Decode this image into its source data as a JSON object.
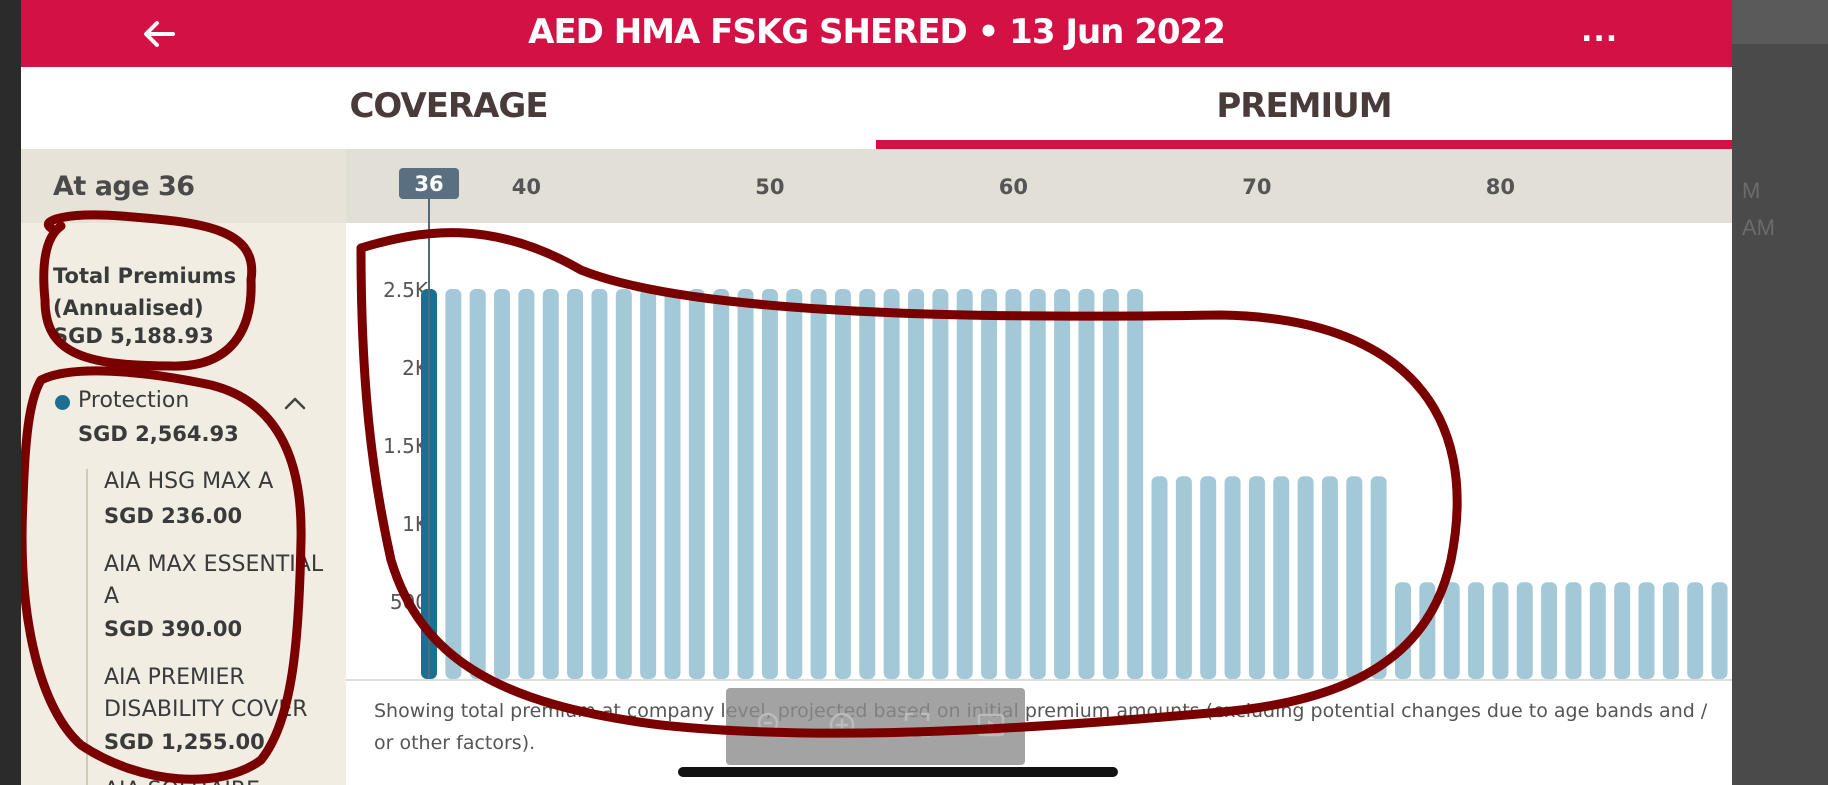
{
  "header": {
    "title": "AED HMA FSKG SHERED • 13 Jun 2022",
    "back_icon": "arrow-left-icon",
    "more_label": "..."
  },
  "tabs": [
    {
      "label": "COVERAGE",
      "selected": false
    },
    {
      "label": "PREMIUM",
      "selected": true
    }
  ],
  "colors": {
    "brand": "#d31145",
    "bar_selected": "#1c6f91",
    "bar": "#a3c9d8",
    "sidebar_bg": "#f1ede2"
  },
  "sidebar": {
    "age_header": "At age 36",
    "total_label": "Total Premiums (Annualised)",
    "total_value": "SGD 5,188.93",
    "protection": {
      "label": "Protection",
      "value": "SGD 2,564.93",
      "expanded": true,
      "items": [
        {
          "name": "AIA HSG MAX A",
          "value": "SGD 236.00"
        },
        {
          "name": "AIA MAX ESSENTIAL A",
          "value": "SGD 390.00"
        },
        {
          "name": "AIA PREMIER DISABILITY COVER",
          "value": "SGD 1,255.00"
        },
        {
          "name": "AIA SOLITAIRE",
          "value": ""
        }
      ]
    }
  },
  "chart_data": {
    "type": "bar",
    "x_axis_ticks": [
      "40",
      "50",
      "60",
      "70",
      "80"
    ],
    "y_axis_ticks": [
      "500",
      "1K",
      "1.5K",
      "2K",
      "2.5K"
    ],
    "selected_age": "36",
    "xlim": [
      36,
      89
    ],
    "ylim": [
      0,
      2500
    ],
    "bars": [
      {
        "age_from": 36,
        "age_to": 65,
        "value": 2500
      },
      {
        "age_from": 66,
        "age_to": 75,
        "value": 1300
      },
      {
        "age_from": 76,
        "age_to": 89,
        "value": 620
      }
    ]
  },
  "footnote": "Showing total premium at company level, projected based on initial premium amounts (excluding potential changes due to age bands and / or other factors).",
  "toolbar": {
    "icons": [
      "zoom-out-icon",
      "zoom-in-icon",
      "fullscreen-icon",
      "slideshow-icon"
    ]
  }
}
